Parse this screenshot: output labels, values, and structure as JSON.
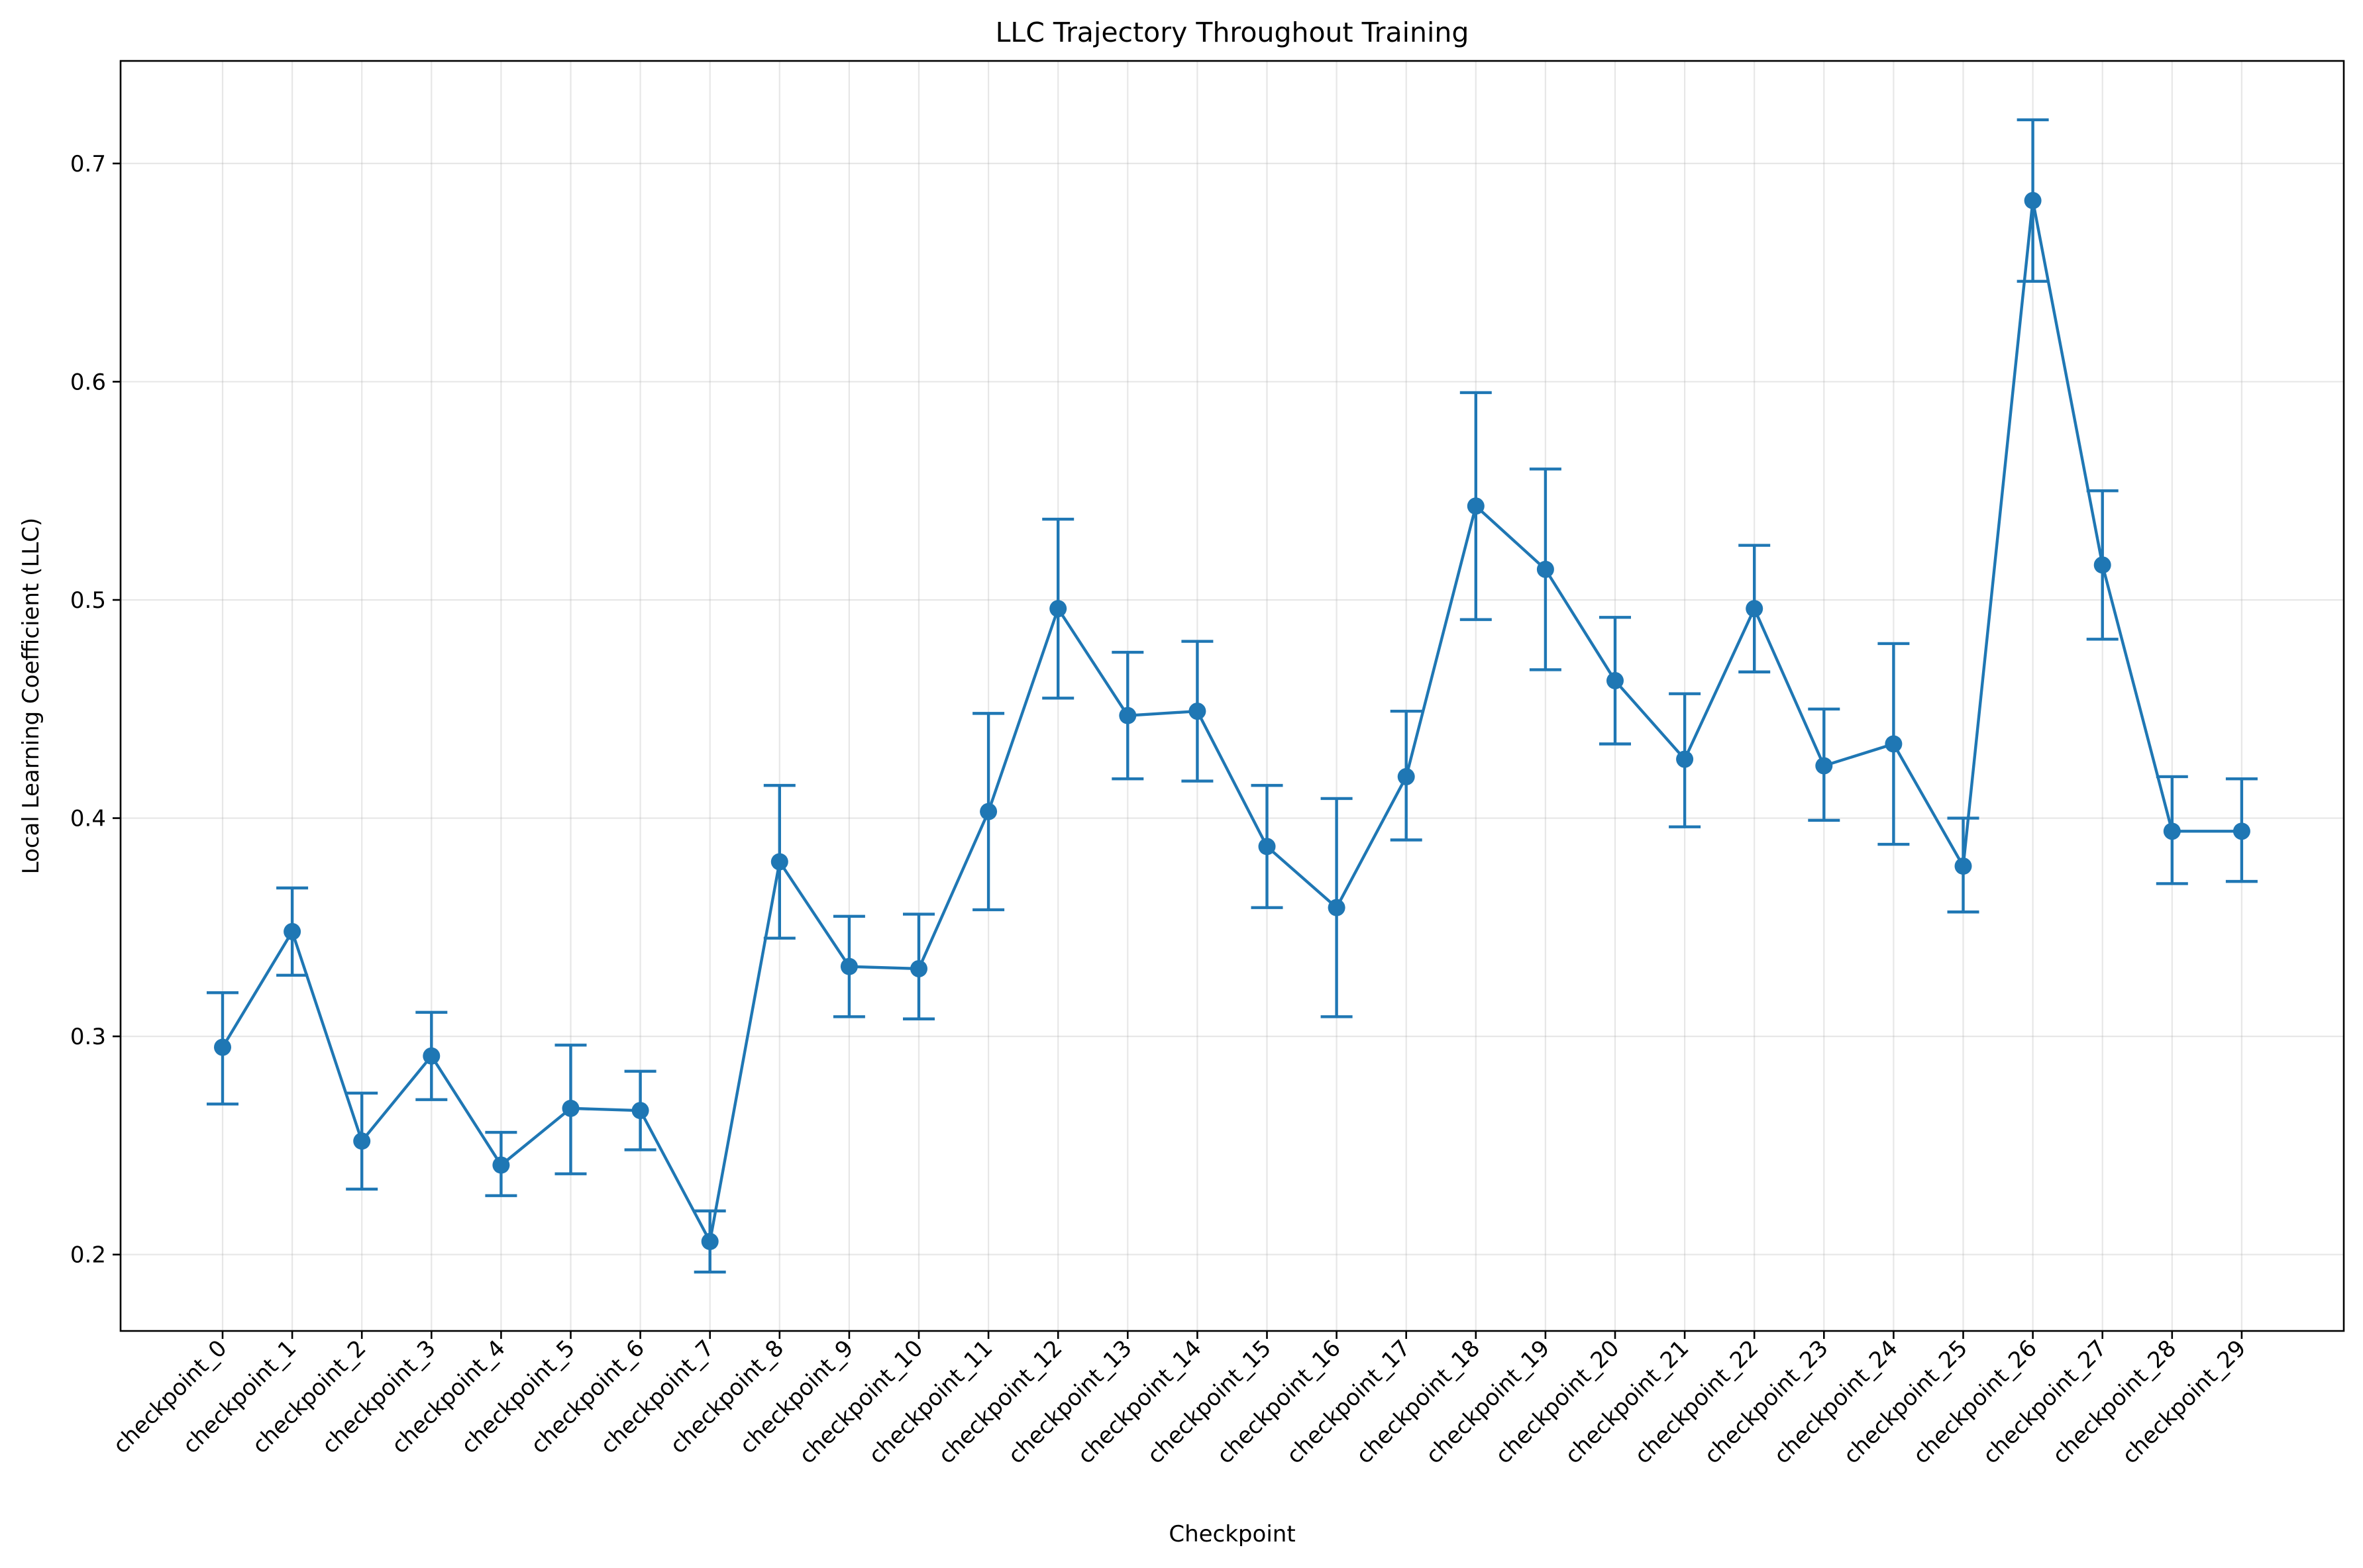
{
  "chart_data": {
    "type": "line",
    "title": "LLC Trajectory Throughout Training",
    "xlabel": "Checkpoint",
    "ylabel": "Local Learning Coefficient (LLC)",
    "categories": [
      "checkpoint_0",
      "checkpoint_1",
      "checkpoint_2",
      "checkpoint_3",
      "checkpoint_4",
      "checkpoint_5",
      "checkpoint_6",
      "checkpoint_7",
      "checkpoint_8",
      "checkpoint_9",
      "checkpoint_10",
      "checkpoint_11",
      "checkpoint_12",
      "checkpoint_13",
      "checkpoint_14",
      "checkpoint_15",
      "checkpoint_16",
      "checkpoint_17",
      "checkpoint_18",
      "checkpoint_19",
      "checkpoint_20",
      "checkpoint_21",
      "checkpoint_22",
      "checkpoint_23",
      "checkpoint_24",
      "checkpoint_25",
      "checkpoint_26",
      "checkpoint_27",
      "checkpoint_28",
      "checkpoint_29"
    ],
    "series": [
      {
        "color": "#1f77b4",
        "values": [
          0.295,
          0.348,
          0.252,
          0.291,
          0.241,
          0.267,
          0.266,
          0.206,
          0.38,
          0.332,
          0.331,
          0.403,
          0.496,
          0.447,
          0.449,
          0.387,
          0.359,
          0.419,
          0.543,
          0.514,
          0.463,
          0.427,
          0.496,
          0.424,
          0.434,
          0.378,
          0.683,
          0.516,
          0.394,
          0.394
        ],
        "err_low": [
          0.269,
          0.328,
          0.23,
          0.271,
          0.227,
          0.237,
          0.248,
          0.192,
          0.345,
          0.309,
          0.308,
          0.358,
          0.455,
          0.418,
          0.417,
          0.359,
          0.309,
          0.39,
          0.491,
          0.468,
          0.434,
          0.396,
          0.467,
          0.399,
          0.388,
          0.357,
          0.646,
          0.482,
          0.37,
          0.371
        ],
        "err_high": [
          0.32,
          0.368,
          0.274,
          0.311,
          0.256,
          0.296,
          0.284,
          0.22,
          0.415,
          0.355,
          0.356,
          0.448,
          0.537,
          0.476,
          0.481,
          0.415,
          0.409,
          0.449,
          0.595,
          0.56,
          0.492,
          0.457,
          0.525,
          0.45,
          0.48,
          0.4,
          0.72,
          0.55,
          0.419,
          0.418
        ]
      }
    ],
    "yticks": [
      "0.2",
      "0.3",
      "0.4",
      "0.5",
      "0.6",
      "0.7"
    ],
    "ylim": [
      0.165,
      0.747
    ],
    "grid": true
  }
}
